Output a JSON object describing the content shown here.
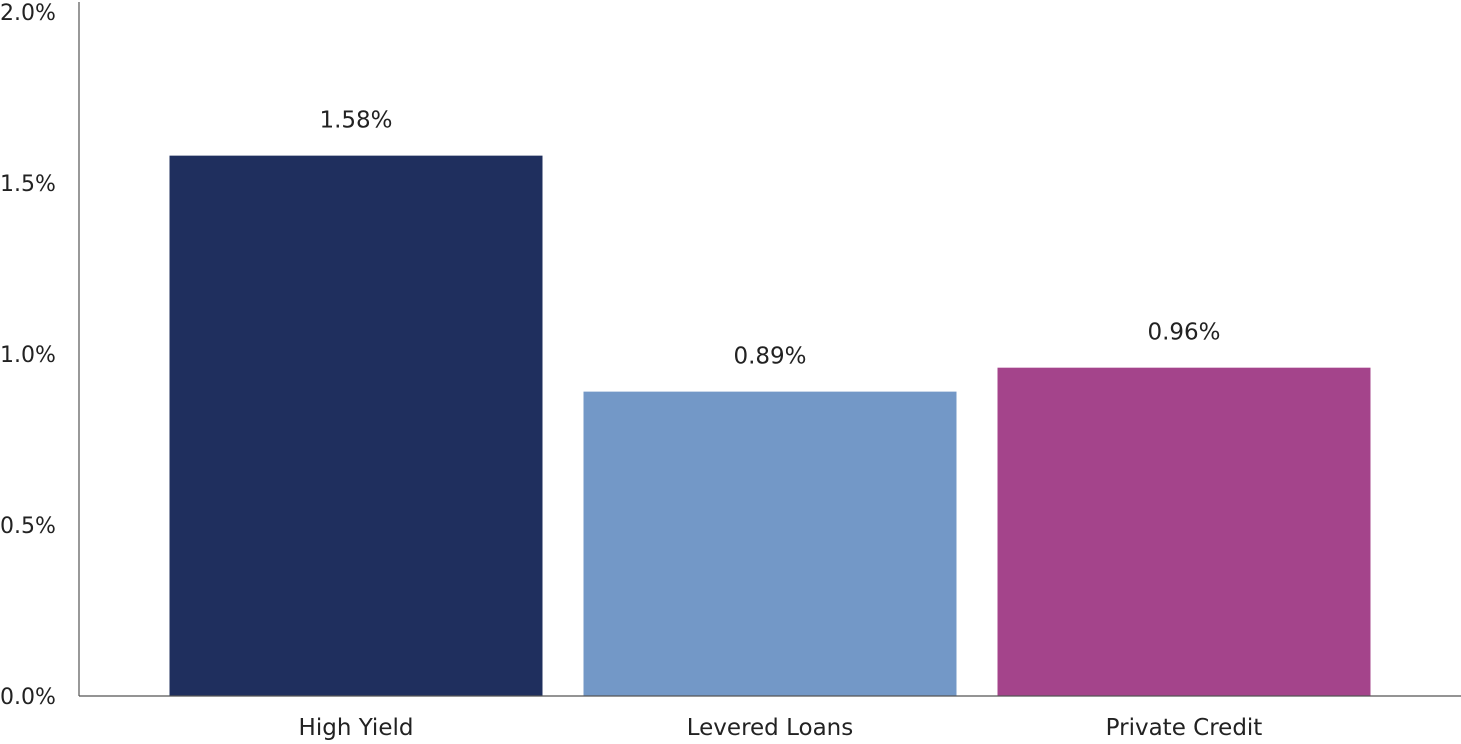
{
  "chart_data": {
    "type": "bar",
    "categories": [
      "High Yield",
      "Levered Loans",
      "Private Credit"
    ],
    "values": [
      1.58,
      0.89,
      0.96
    ],
    "data_labels": [
      "1.58%",
      "0.89%",
      "0.96%"
    ],
    "colors": [
      "#1f2f5e",
      "#7398c7",
      "#a4448b"
    ],
    "axis_color": "#555555",
    "ylim": [
      0,
      2.0
    ],
    "yticks": [
      0.0,
      0.5,
      1.0,
      1.5,
      2.0
    ],
    "ytick_labels": [
      "0.0%",
      "0.5%",
      "1.0%",
      "1.5%",
      "2.0%"
    ],
    "grid": false,
    "legend": "none",
    "title": "",
    "xlabel": "",
    "ylabel": ""
  }
}
